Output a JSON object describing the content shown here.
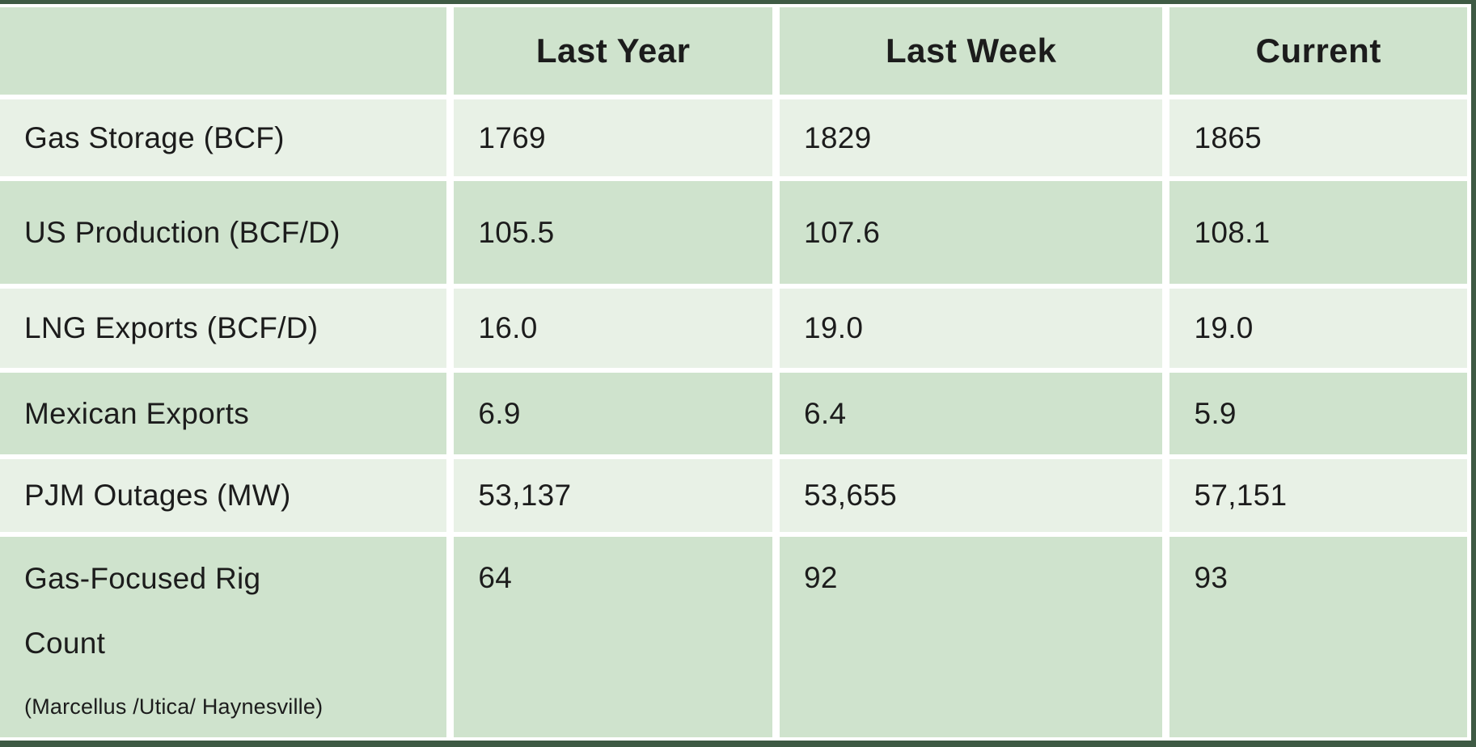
{
  "table": {
    "columns": [
      "",
      "Last Year",
      "Last Week",
      "Current"
    ],
    "rows": [
      {
        "label": "Gas Storage (BCF)",
        "values": [
          "1769",
          "1829",
          "1865"
        ]
      },
      {
        "label": "US Production (BCF/D)",
        "values": [
          "105.5",
          "107.6",
          "108.1"
        ]
      },
      {
        "label": "LNG Exports (BCF/D)",
        "values": [
          "16.0",
          "19.0",
          "19.0"
        ]
      },
      {
        "label": "Mexican Exports",
        "values": [
          "6.9",
          "6.4",
          "5.9"
        ]
      },
      {
        "label": "PJM Outages (MW)",
        "values": [
          "53,137",
          "53,655",
          "57,151"
        ]
      },
      {
        "label": "Gas-Focused Rig Count",
        "sublabel": "(Marcellus /Utica/ Haynesville)",
        "values": [
          "64",
          "92",
          "93"
        ]
      }
    ]
  },
  "colors": {
    "header_bg": "#cfe3cd",
    "row_dark_bg": "#cfe3cd",
    "row_light_bg": "#e8f1e6",
    "frame_border": "#3e5a44",
    "text": "#1c1c1c"
  },
  "chart_data": {
    "type": "table",
    "title": "",
    "columns": [
      "",
      "Last Year",
      "Last Week",
      "Current"
    ],
    "rows": [
      [
        "Gas Storage (BCF)",
        1769,
        1829,
        1865
      ],
      [
        "US Production (BCF/D)",
        105.5,
        107.6,
        108.1
      ],
      [
        "LNG Exports (BCF/D)",
        16.0,
        19.0,
        19.0
      ],
      [
        "Mexican Exports",
        6.9,
        6.4,
        5.9
      ],
      [
        "PJM Outages (MW)",
        53137,
        53655,
        57151
      ],
      [
        "Gas-Focused Rig Count (Marcellus /Utica/ Haynesville)",
        64,
        92,
        93
      ]
    ],
    "layout": {
      "header_row": true,
      "striped": true,
      "stripe_colors": [
        "#e8f1e6",
        "#cfe3cd"
      ],
      "header_color": "#cfe3cd"
    }
  }
}
